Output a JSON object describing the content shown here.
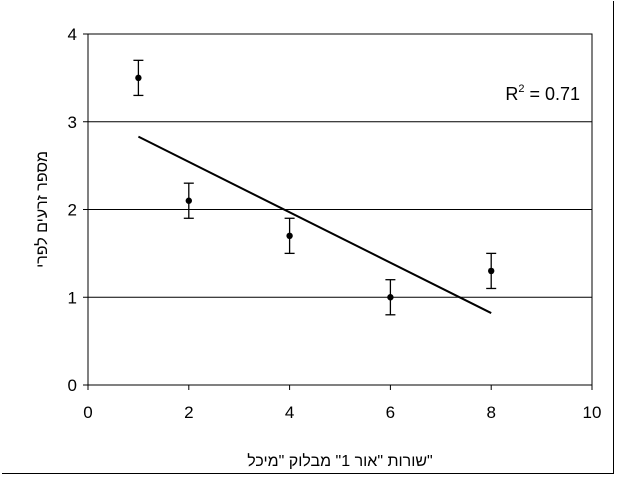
{
  "chart_data": {
    "type": "scatter",
    "title": "",
    "xlabel": "שורות \"אור 1\" מבלוק \"מיכל\"",
    "ylabel": "מספר זרעים לפרי",
    "xlim": [
      0,
      10
    ],
    "ylim": [
      0,
      4
    ],
    "x_ticks": [
      0,
      2,
      4,
      6,
      8,
      10
    ],
    "y_ticks": [
      0,
      1,
      2,
      3,
      4
    ],
    "grid": "horizontal",
    "points": [
      {
        "x": 1,
        "y": 3.5,
        "err": 0.2
      },
      {
        "x": 2,
        "y": 2.1,
        "err": 0.2
      },
      {
        "x": 4,
        "y": 1.7,
        "err": 0.2
      },
      {
        "x": 6,
        "y": 1.0,
        "err": 0.2
      },
      {
        "x": 8,
        "y": 1.3,
        "err": 0.2
      }
    ],
    "trendline": {
      "x": [
        1,
        8
      ],
      "y": [
        2.83,
        0.82
      ]
    },
    "annotation": {
      "base": "R",
      "sup": "2",
      "text": " = 0.71"
    }
  }
}
